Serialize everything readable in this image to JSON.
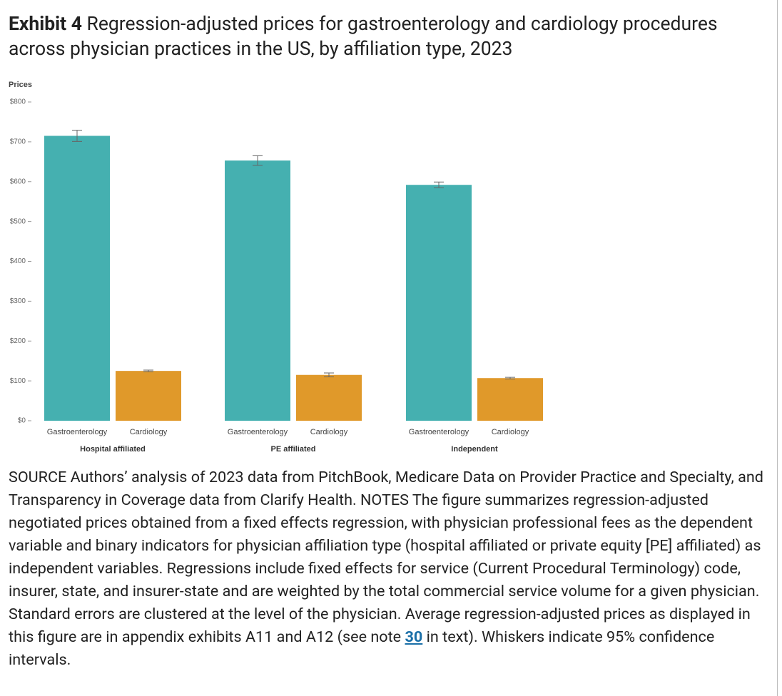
{
  "chart_data": {
    "type": "bar",
    "title_label": "Exhibit 4",
    "title": "Regression-adjusted prices for gastroenterology and cardiology procedures across physician practices in the US, by affiliation type, 2023",
    "ylabel": "Prices",
    "categories": [
      "Hospital affiliated",
      "PE affiliated",
      "Independent"
    ],
    "series": [
      {
        "name": "Gastroenterology",
        "color": "#45b0b0",
        "values": [
          715,
          653,
          592
        ],
        "errors": [
          14,
          12,
          7
        ]
      },
      {
        "name": "Cardiology",
        "color": "#e0992a",
        "values": [
          125,
          115,
          107
        ],
        "errors": [
          2,
          5,
          2
        ]
      }
    ],
    "ylim": [
      0,
      800
    ],
    "yticks": [
      {
        "value": 0,
        "label": "$0"
      },
      {
        "value": 100,
        "label": "$100"
      },
      {
        "value": 200,
        "label": "$200"
      },
      {
        "value": 300,
        "label": "$300"
      },
      {
        "value": 400,
        "label": "$400"
      },
      {
        "value": 500,
        "label": "$500"
      },
      {
        "value": 600,
        "label": "$600"
      },
      {
        "value": 700,
        "label": "$700"
      },
      {
        "value": 800,
        "label": "$800"
      }
    ],
    "grid": false
  },
  "source": {
    "text_before": "SOURCE Authors’ analysis of 2023 data from PitchBook, Medicare Data on Provider Practice and Specialty, and Transparency in Coverage data from Clarify Health. NOTES The figure summarizes regression-adjusted negotiated prices obtained from a fixed effects regression, with physician professional fees as the dependent variable and binary indicators for physician affiliation type (hospital affiliated or private equity [PE] affiliated) as independent variables. Regressions include fixed effects for service (Current Procedural Terminology) code, insurer, state, and insurer-state and are weighted by the total commercial service volume for a given physician. Standard errors are clustered at the level of the physician. Average regression-adjusted prices as displayed in this figure are in appendix exhibits A11 and A12 (see note ",
    "link": "30",
    "text_after": " in text). Whiskers indicate 95% confidence intervals."
  }
}
